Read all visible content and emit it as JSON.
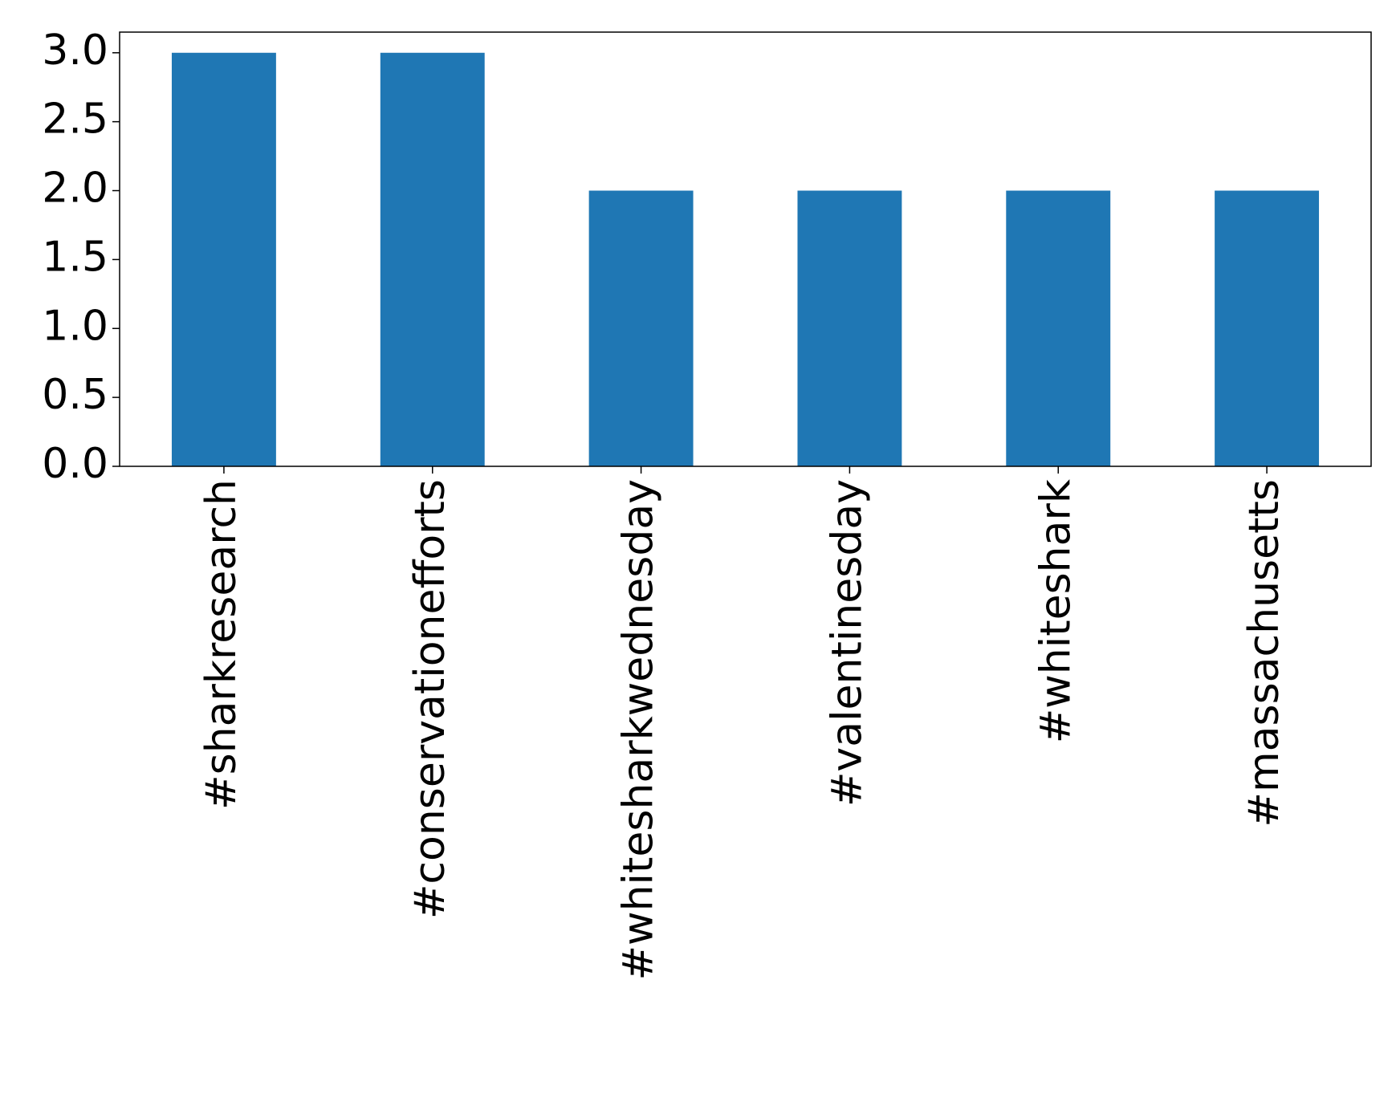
{
  "chart_data": {
    "type": "bar",
    "categories": [
      "#sharkresearch",
      "#conservationefforts",
      "#whitesharkwednesday",
      "#valentinesday",
      "#whiteshark",
      "#massachusetts"
    ],
    "values": [
      3,
      3,
      2,
      2,
      2,
      2
    ],
    "color": "#1f77b4",
    "ylim": [
      0,
      3.15
    ],
    "yticks": [
      {
        "value": 0,
        "label": "0.0"
      },
      {
        "value": 0.5,
        "label": "0.5"
      },
      {
        "value": 1,
        "label": "1.0"
      },
      {
        "value": 1.5,
        "label": "1.5"
      },
      {
        "value": 2,
        "label": "2.0"
      },
      {
        "value": 2.5,
        "label": "2.5"
      },
      {
        "value": 3,
        "label": "3.0"
      }
    ],
    "grid": false
  }
}
